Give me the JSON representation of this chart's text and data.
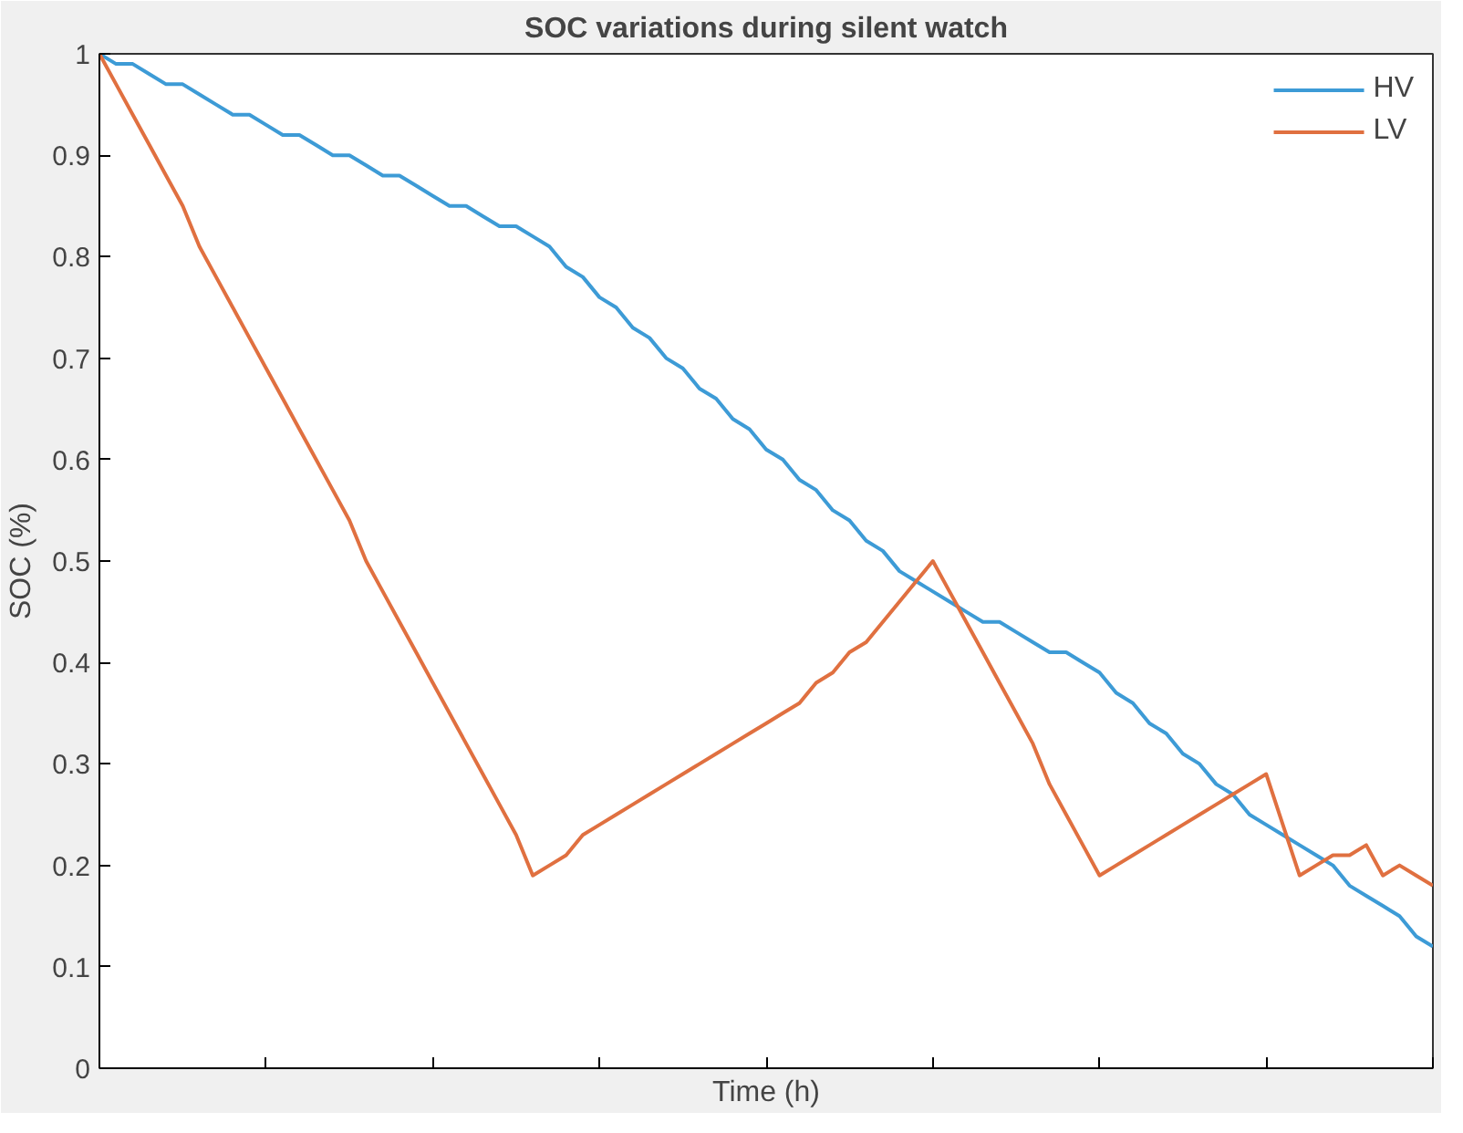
{
  "chart_data": {
    "type": "line",
    "title": "SOC variations during silent watch",
    "xlabel": "Time (h)",
    "ylabel": "SOC (%)",
    "categories": [
      null,
      null,
      null,
      null,
      null,
      null,
      null,
      null,
      null,
      null,
      null,
      null,
      null,
      null,
      null,
      null,
      null,
      null,
      null,
      null,
      null,
      null,
      null,
      null,
      null,
      null,
      null,
      null,
      null,
      null,
      null,
      null,
      null,
      null,
      null,
      null,
      null,
      null,
      null,
      null,
      null,
      null,
      null,
      null,
      null,
      null,
      null,
      null,
      null,
      null,
      null,
      null,
      null,
      null,
      null,
      null,
      null,
      null,
      null,
      null,
      null,
      null,
      null,
      null,
      null,
      null,
      null,
      null,
      null,
      null,
      null,
      null,
      null,
      null,
      null,
      null,
      null,
      null,
      null,
      null,
      null
    ],
    "series": [
      {
        "name": "HV",
        "color": "#3d9bd6",
        "values": [
          1,
          0.99,
          0.99,
          0.98,
          0.97,
          0.97,
          0.96,
          0.95,
          0.94,
          0.94,
          0.93,
          0.92,
          0.92,
          0.91,
          0.9,
          0.9,
          0.89,
          0.88,
          0.88,
          0.87,
          0.86,
          0.85,
          0.85,
          0.84,
          0.83,
          0.83,
          0.82,
          0.81,
          0.79,
          0.78,
          0.76,
          0.75,
          0.73,
          0.72,
          0.7,
          0.69,
          0.67,
          0.66,
          0.64,
          0.63,
          0.61,
          0.6,
          0.58,
          0.57,
          0.55,
          0.54,
          0.52,
          0.51,
          0.49,
          0.48,
          0.47,
          0.46,
          0.45,
          0.44,
          0.44,
          0.43,
          0.42,
          0.41,
          0.41,
          0.4,
          0.39,
          0.37,
          0.36,
          0.34,
          0.33,
          0.31,
          0.3,
          0.28,
          0.27,
          0.25,
          0.24,
          0.23,
          0.22,
          0.21,
          0.2,
          0.18,
          0.17,
          0.16,
          0.15,
          0.13,
          0.12
        ]
      },
      {
        "name": "LV",
        "color": "#e07040",
        "values": [
          1,
          0.97,
          0.94,
          0.91,
          0.88,
          0.85,
          0.81,
          0.78,
          0.75,
          0.72,
          0.69,
          0.66,
          0.63,
          0.6,
          0.57,
          0.54,
          0.5,
          0.47,
          0.44,
          0.41,
          0.38,
          0.35,
          0.32,
          0.29,
          0.26,
          0.23,
          0.19,
          0.2,
          0.21,
          0.23,
          0.24,
          0.25,
          0.26,
          0.27,
          0.28,
          0.29,
          0.3,
          0.31,
          0.32,
          0.33,
          0.34,
          0.35,
          0.36,
          0.38,
          0.39,
          0.41,
          0.42,
          0.44,
          0.46,
          0.48,
          0.5,
          0.47,
          0.44,
          0.41,
          0.38,
          0.35,
          0.32,
          0.28,
          0.25,
          0.22,
          0.19,
          0.2,
          0.21,
          0.22,
          0.23,
          0.24,
          0.25,
          0.26,
          0.27,
          0.28,
          0.29,
          0.24,
          0.19,
          0.2,
          0.21,
          0.21,
          0.22,
          0.19,
          0.2,
          0.19,
          0.18
        ]
      }
    ],
    "ylim": [
      0,
      1
    ],
    "yticks": [
      0,
      0.1,
      0.2,
      0.3,
      0.4,
      0.5,
      0.6,
      0.7,
      0.8,
      0.9,
      1
    ],
    "grid": false,
    "legend": "top right",
    "line_style": "solid",
    "marker": "none"
  }
}
